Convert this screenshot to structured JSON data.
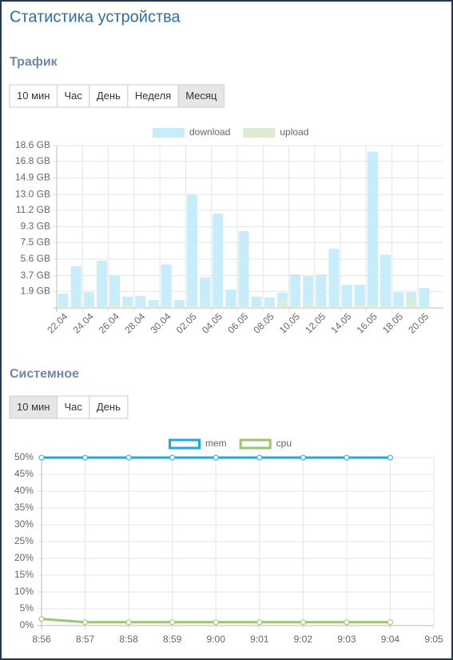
{
  "header": {
    "title": "Статистика устройства"
  },
  "sections": [
    {
      "title": "Трафик",
      "buttons": [
        "10 мин",
        "Час",
        "День",
        "Неделя",
        "Месяц"
      ],
      "active_button": 4
    },
    {
      "title": "Системное",
      "buttons": [
        "10 мин",
        "Час",
        "День"
      ],
      "active_button": 0
    }
  ],
  "chart_data": [
    {
      "type": "bar",
      "categories": [
        "22.04",
        null,
        "24.04",
        null,
        "26.04",
        null,
        "28.04",
        null,
        "30.04",
        null,
        "02.05",
        null,
        "04.05",
        null,
        "06.05",
        null,
        "08.05",
        null,
        "10.05",
        null,
        "12.05",
        null,
        "14.05",
        null,
        "16.05",
        null,
        "18.05",
        null,
        "20.05"
      ],
      "series": [
        {
          "name": "download",
          "color": "#c6edf9",
          "values": [
            1.65,
            4.8,
            1.8,
            5.4,
            3.75,
            1.3,
            1.4,
            0.9,
            5.0,
            0.9,
            13.0,
            3.5,
            10.8,
            2.1,
            8.8,
            1.3,
            1.2,
            1.75,
            3.85,
            3.65,
            3.85,
            6.8,
            2.65,
            2.65,
            17.9,
            6.1,
            1.8,
            1.8,
            2.3
          ]
        },
        {
          "name": "upload",
          "color": "#dcecd3",
          "values": [
            0.1,
            0.2,
            0.1,
            0.2,
            0.3,
            0.4,
            0.2,
            0.1,
            0.2,
            0.1,
            0.3,
            0.2,
            0.2,
            0.1,
            0.2,
            0.1,
            0.1,
            0.9,
            0.2,
            0.5,
            0.2,
            0.2,
            0.2,
            0.5,
            0.4,
            0.2,
            0.2,
            1.2,
            0.2
          ]
        }
      ],
      "ylim": [
        0,
        18.6
      ],
      "yticks": [
        {
          "value": 1.9,
          "label": "1.9 GB"
        },
        {
          "value": 3.7,
          "label": "3.7 GB"
        },
        {
          "value": 5.6,
          "label": "5.6 GB"
        },
        {
          "value": 7.5,
          "label": "7.5 GB"
        },
        {
          "value": 9.3,
          "label": "9.3 GB"
        },
        {
          "value": 11.2,
          "label": "11.2 GB"
        },
        {
          "value": 13.0,
          "label": "13.0 GB"
        },
        {
          "value": 14.9,
          "label": "14.9 GB"
        },
        {
          "value": 16.8,
          "label": "16.8 GB"
        },
        {
          "value": 18.6,
          "label": "18.6 GB"
        }
      ],
      "grid": true
    },
    {
      "type": "line",
      "categories": [
        "8:56",
        "8:57",
        "8:58",
        "8:59",
        "9:00",
        "9:01",
        "9:02",
        "9:03",
        "9:04",
        "9:05"
      ],
      "series": [
        {
          "name": "mem",
          "color": "#1aace0",
          "values": [
            50,
            50,
            50,
            50,
            50,
            50,
            50,
            50,
            50,
            null
          ]
        },
        {
          "name": "cpu",
          "color": "#9bc66f",
          "values": [
            2,
            1,
            1,
            1,
            1,
            1,
            1,
            1,
            1,
            null
          ]
        }
      ],
      "ylim": [
        0,
        50
      ],
      "yticks": [
        {
          "value": 0,
          "label": "0%"
        },
        {
          "value": 5,
          "label": "5%"
        },
        {
          "value": 10,
          "label": "10%"
        },
        {
          "value": 15,
          "label": "15%"
        },
        {
          "value": 20,
          "label": "20%"
        },
        {
          "value": 25,
          "label": "25%"
        },
        {
          "value": 30,
          "label": "30%"
        },
        {
          "value": 35,
          "label": "35%"
        },
        {
          "value": 40,
          "label": "40%"
        },
        {
          "value": 45,
          "label": "45%"
        },
        {
          "value": 50,
          "label": "50%"
        }
      ],
      "grid": true
    }
  ]
}
